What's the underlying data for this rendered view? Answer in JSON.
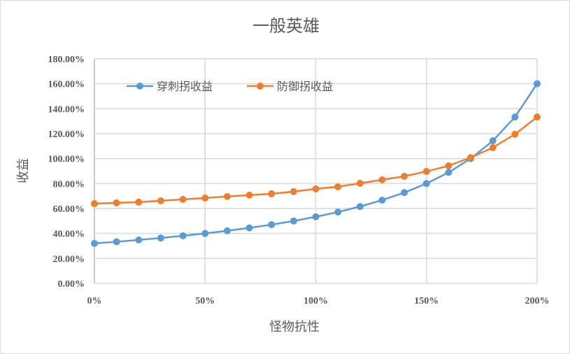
{
  "chart_data": {
    "type": "line",
    "title": "一般英雄",
    "xlabel": "怪物抗性",
    "ylabel": "收益",
    "x": [
      0,
      10,
      20,
      30,
      40,
      50,
      60,
      70,
      80,
      90,
      100,
      110,
      120,
      130,
      140,
      150,
      160,
      170,
      180,
      190,
      200
    ],
    "x_unit": "%",
    "x_ticks": [
      "0%",
      "50%",
      "100%",
      "150%",
      "200%"
    ],
    "x_tick_values": [
      0,
      50,
      100,
      150,
      200
    ],
    "xlim": [
      0,
      200
    ],
    "y_ticks": [
      "0.00%",
      "20.00%",
      "40.00%",
      "60.00%",
      "80.00%",
      "100.00%",
      "120.00%",
      "140.00%",
      "160.00%",
      "180.00%"
    ],
    "y_tick_values": [
      0,
      20,
      40,
      60,
      80,
      100,
      120,
      140,
      160,
      180
    ],
    "ylim": [
      0,
      180
    ],
    "grid": true,
    "legend_position": "top-left",
    "series": [
      {
        "name": "穿刺拐收益",
        "color": "#5b9bd5",
        "values": [
          32.0,
          33.33,
          34.78,
          36.36,
          38.1,
          40.0,
          42.11,
          44.44,
          47.06,
          50.0,
          53.33,
          57.14,
          61.54,
          66.67,
          72.73,
          80.0,
          88.89,
          100.0,
          114.29,
          133.33,
          160.0
        ]
      },
      {
        "name": "防御拐收益",
        "color": "#ed7d31",
        "values": [
          63.9,
          64.5,
          65.1,
          66.2,
          67.3,
          68.4,
          69.6,
          70.7,
          71.8,
          73.5,
          75.7,
          77.4,
          80.2,
          83.0,
          85.8,
          89.7,
          94.2,
          100.8,
          108.8,
          119.5,
          133.3
        ]
      }
    ]
  }
}
